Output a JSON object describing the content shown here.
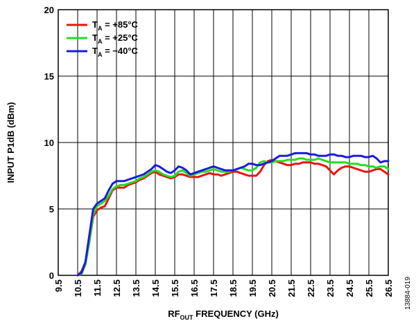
{
  "chart_data": {
    "type": "line",
    "xlabel": {
      "main": "RF",
      "sub": "OUT",
      "rest": " FREQUENCY (GHz)"
    },
    "ylabel": "INPUT P1dB (dBm)",
    "xlim": [
      9.5,
      26.5
    ],
    "ylim": [
      0,
      20
    ],
    "x_ticks": [
      "9.5",
      "10.5",
      "11.5",
      "12.5",
      "13.5",
      "14.5",
      "15.5",
      "16.5",
      "17.5",
      "18.5",
      "19.5",
      "20.5",
      "21.5",
      "22.5",
      "23.5",
      "24.5",
      "25.5",
      "26.5"
    ],
    "y_ticks": [
      "0",
      "5",
      "10",
      "15",
      "20"
    ],
    "grid": true,
    "legend_position": "top-left",
    "figure_id": "13884-019",
    "series": [
      {
        "name_main": "T",
        "name_sub": "A",
        "name_rest": " = +85°C",
        "color": "#e8150f",
        "x": [
          10.5,
          10.7,
          10.9,
          11.1,
          11.3,
          11.5,
          11.7,
          11.9,
          12.1,
          12.3,
          12.5,
          12.7,
          12.9,
          13.1,
          13.3,
          13.5,
          13.7,
          13.9,
          14.1,
          14.3,
          14.5,
          14.7,
          14.9,
          15.1,
          15.3,
          15.5,
          15.7,
          15.9,
          16.1,
          16.3,
          16.5,
          16.7,
          16.9,
          17.1,
          17.3,
          17.5,
          17.7,
          17.9,
          18.1,
          18.3,
          18.5,
          18.7,
          18.9,
          19.1,
          19.3,
          19.5,
          19.7,
          19.9,
          20.1,
          20.3,
          20.5,
          20.7,
          20.9,
          21.1,
          21.3,
          21.5,
          21.7,
          21.9,
          22.1,
          22.3,
          22.5,
          22.7,
          22.9,
          23.1,
          23.3,
          23.5,
          23.7,
          23.9,
          24.1,
          24.3,
          24.5,
          24.7,
          24.9,
          25.1,
          25.3,
          25.5,
          25.7,
          25.9,
          26.1,
          26.3,
          26.5
        ],
        "y": [
          0.0,
          0.3,
          1.0,
          2.5,
          4.4,
          4.9,
          5.1,
          5.2,
          5.8,
          6.4,
          6.6,
          6.6,
          6.6,
          6.8,
          6.9,
          7.0,
          7.2,
          7.3,
          7.5,
          7.7,
          7.8,
          7.6,
          7.5,
          7.4,
          7.3,
          7.4,
          7.6,
          7.6,
          7.5,
          7.4,
          7.4,
          7.4,
          7.5,
          7.6,
          7.7,
          7.6,
          7.6,
          7.5,
          7.6,
          7.7,
          7.8,
          7.8,
          7.7,
          7.6,
          7.5,
          7.5,
          7.5,
          7.8,
          8.3,
          8.6,
          8.7,
          8.6,
          8.5,
          8.4,
          8.3,
          8.3,
          8.4,
          8.4,
          8.5,
          8.5,
          8.5,
          8.4,
          8.4,
          8.3,
          8.2,
          7.9,
          7.6,
          7.9,
          8.1,
          8.2,
          8.2,
          8.1,
          8.0,
          7.9,
          7.8,
          7.8,
          7.9,
          8.0,
          8.0,
          7.8,
          7.6
        ]
      },
      {
        "name_main": "T",
        "name_sub": "A",
        "name_rest": " = +25°C",
        "color": "#22dd22",
        "x": [
          10.5,
          10.7,
          10.9,
          11.1,
          11.3,
          11.5,
          11.7,
          11.9,
          12.1,
          12.3,
          12.5,
          12.7,
          12.9,
          13.1,
          13.3,
          13.5,
          13.7,
          13.9,
          14.1,
          14.3,
          14.5,
          14.7,
          14.9,
          15.1,
          15.3,
          15.5,
          15.7,
          15.9,
          16.1,
          16.3,
          16.5,
          16.7,
          16.9,
          17.1,
          17.3,
          17.5,
          17.7,
          17.9,
          18.1,
          18.3,
          18.5,
          18.7,
          18.9,
          19.1,
          19.3,
          19.5,
          19.7,
          19.9,
          20.1,
          20.3,
          20.5,
          20.7,
          20.9,
          21.1,
          21.3,
          21.5,
          21.7,
          21.9,
          22.1,
          22.3,
          22.5,
          22.7,
          22.9,
          23.1,
          23.3,
          23.5,
          23.7,
          23.9,
          24.1,
          24.3,
          24.5,
          24.7,
          24.9,
          25.1,
          25.3,
          25.5,
          25.7,
          25.9,
          26.1,
          26.3,
          26.5
        ],
        "y": [
          0.0,
          0.1,
          0.8,
          2.5,
          4.6,
          5.2,
          5.4,
          5.6,
          6.0,
          6.5,
          6.7,
          6.8,
          6.8,
          6.9,
          7.0,
          7.1,
          7.3,
          7.4,
          7.6,
          7.8,
          7.9,
          7.8,
          7.6,
          7.5,
          7.4,
          7.5,
          7.8,
          7.9,
          7.7,
          7.5,
          7.6,
          7.7,
          7.8,
          7.8,
          7.9,
          8.0,
          7.9,
          7.8,
          7.8,
          7.8,
          7.9,
          8.0,
          8.1,
          8.0,
          7.9,
          7.9,
          8.1,
          8.5,
          8.6,
          8.5,
          8.5,
          8.6,
          8.6,
          8.6,
          8.7,
          8.7,
          8.7,
          8.8,
          8.8,
          8.7,
          8.7,
          8.7,
          8.8,
          8.7,
          8.6,
          8.5,
          8.5,
          8.5,
          8.5,
          8.5,
          8.4,
          8.4,
          8.4,
          8.3,
          8.3,
          8.2,
          8.2,
          8.1,
          8.2,
          8.2,
          8.0
        ]
      },
      {
        "name_main": "T",
        "name_sub": "A",
        "name_rest": " = −40°C",
        "color": "#1a1ae0",
        "x": [
          10.5,
          10.7,
          10.9,
          11.1,
          11.3,
          11.5,
          11.7,
          11.9,
          12.1,
          12.3,
          12.5,
          12.7,
          12.9,
          13.1,
          13.3,
          13.5,
          13.7,
          13.9,
          14.1,
          14.3,
          14.5,
          14.7,
          14.9,
          15.1,
          15.3,
          15.5,
          15.7,
          15.9,
          16.1,
          16.3,
          16.5,
          16.7,
          16.9,
          17.1,
          17.3,
          17.5,
          17.7,
          17.9,
          18.1,
          18.3,
          18.5,
          18.7,
          18.9,
          19.1,
          19.3,
          19.5,
          19.7,
          19.9,
          20.1,
          20.3,
          20.5,
          20.7,
          20.9,
          21.1,
          21.3,
          21.5,
          21.7,
          21.9,
          22.1,
          22.3,
          22.5,
          22.7,
          22.9,
          23.1,
          23.3,
          23.5,
          23.7,
          23.9,
          24.1,
          24.3,
          24.5,
          24.7,
          24.9,
          25.1,
          25.3,
          25.5,
          25.7,
          25.9,
          26.1,
          26.3,
          26.5
        ],
        "y": [
          0.0,
          0.2,
          1.0,
          3.0,
          5.0,
          5.4,
          5.6,
          5.8,
          6.4,
          6.9,
          7.1,
          7.1,
          7.1,
          7.2,
          7.3,
          7.4,
          7.5,
          7.6,
          7.8,
          8.0,
          8.3,
          8.2,
          8.0,
          7.8,
          7.7,
          7.9,
          8.2,
          8.1,
          7.9,
          7.6,
          7.7,
          7.8,
          7.9,
          8.0,
          8.1,
          8.2,
          8.1,
          8.0,
          7.9,
          7.9,
          7.9,
          8.0,
          8.1,
          8.2,
          8.4,
          8.4,
          8.3,
          8.3,
          8.4,
          8.5,
          8.6,
          8.8,
          9.0,
          9.0,
          9.0,
          9.1,
          9.2,
          9.2,
          9.2,
          9.2,
          9.1,
          9.1,
          9.0,
          9.0,
          9.0,
          9.1,
          9.1,
          9.0,
          9.0,
          8.9,
          8.9,
          9.0,
          9.0,
          9.0,
          8.9,
          8.9,
          9.0,
          8.8,
          8.5,
          8.6,
          8.6
        ]
      }
    ]
  }
}
